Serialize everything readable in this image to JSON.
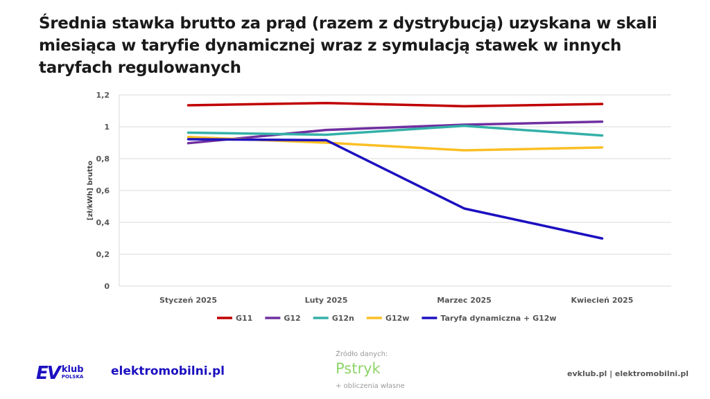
{
  "title": "Średnia stawka brutto za prąd (razem z dystrybucją) uzyskana w skali miesiąca w taryfie dynamicznej wraz z symulacją stawek w innych taryfach regulowanych",
  "chart_data": {
    "type": "line",
    "title": "Średnia stawka brutto za prąd (razem z dystrybucją) uzyskana w skali miesiąca w taryfie dynamicznej wraz z symulacją stawek w innych taryfach regulowanych",
    "xlabel": "",
    "ylabel": "[zł/kWh] brutto",
    "ylim": [
      0,
      1.2
    ],
    "yticks": [
      "0",
      "0,2",
      "0,4",
      "0,6",
      "0,8",
      "1",
      "1,2"
    ],
    "categories": [
      "Styczeń 2025",
      "Luty 2025",
      "Marzec 2025",
      "Kwiecień 2025"
    ],
    "legend_position": "bottom",
    "series": [
      {
        "name": "G11",
        "color": "#c00000",
        "values": [
          1.135,
          1.149,
          1.129,
          1.143
        ]
      },
      {
        "name": "G12",
        "color": "#7030a0",
        "values": [
          0.897,
          0.98,
          1.013,
          1.032
        ]
      },
      {
        "name": "G12n",
        "color": "#33b0a8",
        "values": [
          0.963,
          0.95,
          1.006,
          0.945
        ]
      },
      {
        "name": "G12w",
        "color": "#fbbf24",
        "values": [
          0.936,
          0.9,
          0.852,
          0.87
        ]
      },
      {
        "name": "Taryfa dynamiczna + G12w",
        "color": "#1c10c0",
        "values": [
          0.922,
          0.916,
          0.487,
          0.299
        ]
      }
    ]
  },
  "footer": {
    "logo_ev": "EV",
    "logo_klub": "klub",
    "logo_polska": "POLSKA",
    "elektromobilni": "elektromobilni.pl",
    "source_label": "Źródło danych:",
    "source_logo": "Pstryk",
    "source_note": "+ obliczenia własne",
    "sites": "evklub.pl | elektromobilni.pl"
  }
}
